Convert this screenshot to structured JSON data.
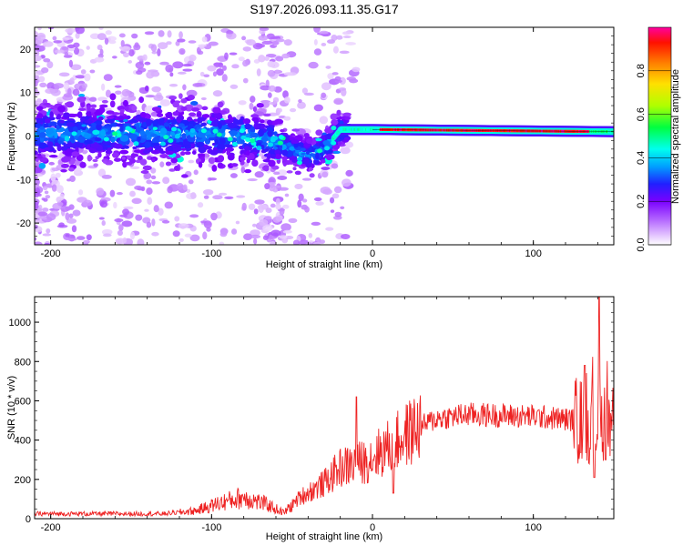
{
  "title": "S197.2026.093.11.35.G17",
  "chart_data": [
    {
      "type": "heatmap",
      "name": "spectrogram",
      "xlabel": "Height of straight line (km)",
      "ylabel": "Frequency (Hz)",
      "xlim": [
        -210,
        150
      ],
      "ylim": [
        -25,
        25
      ],
      "xticks": [
        -200,
        -100,
        0,
        100
      ],
      "yticks": [
        -20,
        -10,
        0,
        10,
        20
      ],
      "colorbar": {
        "label": "Normalized spectral amplitude",
        "range": [
          0,
          1
        ],
        "ticks": [
          0.0,
          0.2,
          0.4,
          0.6,
          0.8
        ],
        "tick_labels": [
          "0.0",
          "0.2",
          "0.4",
          "0.6",
          "0.8"
        ]
      },
      "ridge": [
        {
          "x": -210,
          "f": 0.5
        },
        {
          "x": -100,
          "f": 0.5
        },
        {
          "x": -80,
          "f": 0.0
        },
        {
          "x": -60,
          "f": -1.5
        },
        {
          "x": -40,
          "f": -4.5
        },
        {
          "x": -30,
          "f": -3.0
        },
        {
          "x": -20,
          "f": 1.5
        },
        {
          "x": -10,
          "f": 1.5
        },
        {
          "x": 0,
          "f": 1.5
        },
        {
          "x": 150,
          "f": 1.0
        }
      ]
    },
    {
      "type": "line",
      "name": "snr",
      "xlabel": "Height of straight line (km)",
      "ylabel": "SNR (10 * v/v)",
      "xlim": [
        -210,
        150
      ],
      "ylim": [
        0,
        1130
      ],
      "xticks": [
        -200,
        -100,
        0,
        100
      ],
      "yticks": [
        0,
        200,
        400,
        600,
        800,
        1000
      ],
      "color": "#ee2222",
      "envelope": [
        {
          "x": -210,
          "y": 25
        },
        {
          "x": -130,
          "y": 25
        },
        {
          "x": -110,
          "y": 40
        },
        {
          "x": -95,
          "y": 80
        },
        {
          "x": -80,
          "y": 110
        },
        {
          "x": -65,
          "y": 70
        },
        {
          "x": -55,
          "y": 30
        },
        {
          "x": -45,
          "y": 110
        },
        {
          "x": -30,
          "y": 180
        },
        {
          "x": -20,
          "y": 260
        },
        {
          "x": -5,
          "y": 290
        },
        {
          "x": 5,
          "y": 340
        },
        {
          "x": 15,
          "y": 390
        },
        {
          "x": 25,
          "y": 450
        },
        {
          "x": 40,
          "y": 510
        },
        {
          "x": 60,
          "y": 530
        },
        {
          "x": 100,
          "y": 520
        },
        {
          "x": 130,
          "y": 500
        },
        {
          "x": 150,
          "y": 500
        }
      ],
      "spikes": [
        {
          "x": -10,
          "y": 620
        },
        {
          "x": 13,
          "y": 130
        },
        {
          "x": 132,
          "y": 780
        },
        {
          "x": 141,
          "y": 1130
        },
        {
          "x": 138,
          "y": 210
        },
        {
          "x": 145,
          "y": 300
        }
      ]
    }
  ]
}
